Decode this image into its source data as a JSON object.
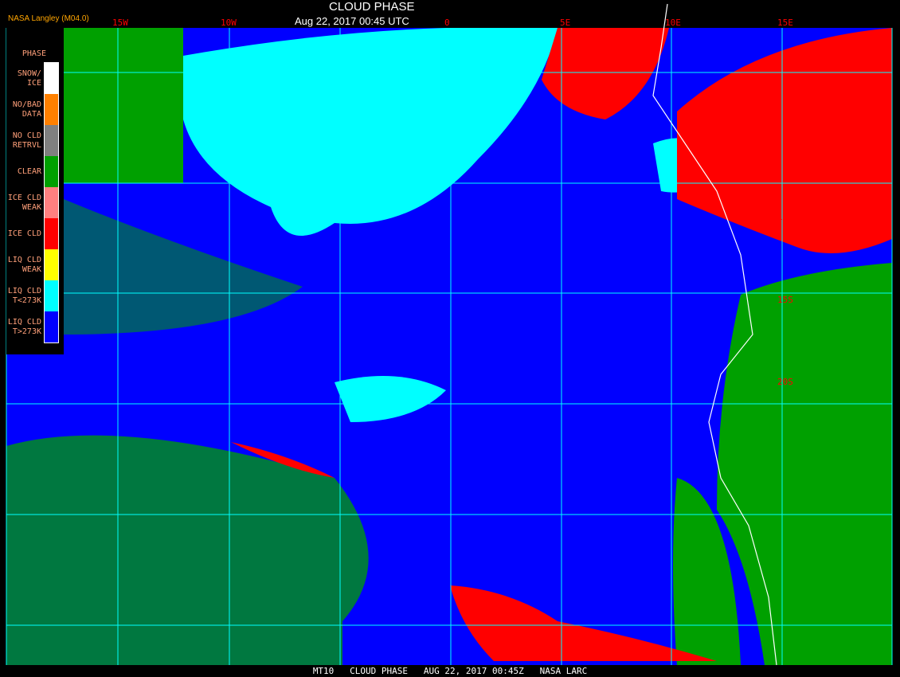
{
  "title": "CLOUD PHASE",
  "subtitle": "Aug 22, 2017 00:45 UTC",
  "credit": "NASA Langley (M04.0)",
  "footer": "MT10   CLOUD PHASE   AUG 22, 2017 00:45Z   NASA LARC",
  "legend": {
    "title": "PHASE",
    "items": [
      {
        "label": "SNOW/\nICE",
        "color": "#ffffff"
      },
      {
        "label": "NO/BAD\nDATA",
        "color": "#ff8000"
      },
      {
        "label": "NO CLD\nRETRVL",
        "color": "#808080"
      },
      {
        "label": "CLEAR",
        "color": "#00a000"
      },
      {
        "label": "ICE CLD\nWEAK",
        "color": "#ff8080"
      },
      {
        "label": "ICE CLD",
        "color": "#ff0000"
      },
      {
        "label": "LIQ CLD\nWEAK",
        "color": "#ffff00"
      },
      {
        "label": "LIQ CLD\nT<273K",
        "color": "#00ffff"
      },
      {
        "label": "LIQ CLD\nT>273K",
        "color": "#0000ff"
      }
    ]
  },
  "grid_labels": {
    "longitude": [
      "15W",
      "10W",
      "0",
      "5E",
      "10E",
      "15E"
    ],
    "latitude": [
      "10S",
      "15S",
      "20S"
    ]
  },
  "colors": {
    "grid": "#00ffff",
    "coast": "#ffffff",
    "label": "#ff0000"
  }
}
